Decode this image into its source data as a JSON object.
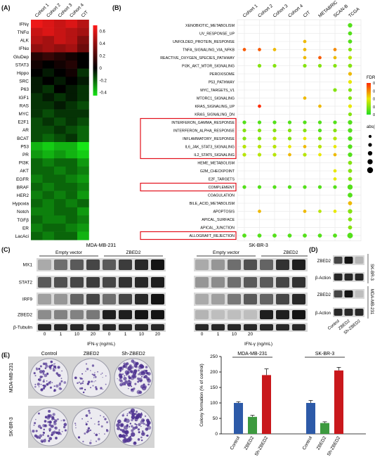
{
  "panels": {
    "A": {
      "letter": "(A)",
      "columns": [
        "Cohort 1",
        "Cohort 2",
        "Cohort 3",
        "Cohort 4",
        "CIT"
      ],
      "rows": [
        "IFNγ",
        "TNFα",
        "ALK",
        "IFNα",
        "GluDep",
        "STAT3",
        "Hippo",
        "SRC",
        "P63",
        "IGF1",
        "RAS",
        "MYC",
        "E2F1",
        "AR",
        "BCAT",
        "P53",
        "PR",
        "PI3K",
        "AKT",
        "EGFR",
        "BRAF",
        "HER2",
        "Hypoxia",
        "Notch",
        "TGFβ",
        "ER",
        "LacAci"
      ],
      "values": [
        [
          0.65,
          0.6,
          0.55,
          0.6,
          0.5
        ],
        [
          0.55,
          0.6,
          0.55,
          0.5,
          0.45
        ],
        [
          0.5,
          0.45,
          0.55,
          0.5,
          0.35
        ],
        [
          0.4,
          0.45,
          0.4,
          0.45,
          0.3
        ],
        [
          0.1,
          0.15,
          0.1,
          0.05,
          0.0
        ],
        [
          0.05,
          0.0,
          0.05,
          0.1,
          0.0
        ],
        [
          0.0,
          -0.05,
          0.0,
          0.05,
          -0.1
        ],
        [
          -0.05,
          0.0,
          -0.05,
          0.0,
          -0.05
        ],
        [
          -0.05,
          -0.1,
          0.0,
          -0.05,
          -0.1
        ],
        [
          -0.1,
          -0.05,
          -0.1,
          -0.05,
          -0.1
        ],
        [
          -0.1,
          -0.1,
          -0.05,
          -0.1,
          -0.15
        ],
        [
          -0.1,
          -0.15,
          -0.1,
          -0.1,
          -0.1
        ],
        [
          -0.15,
          -0.1,
          -0.15,
          -0.1,
          -0.15
        ],
        [
          -0.15,
          -0.15,
          -0.1,
          -0.15,
          -0.2
        ],
        [
          -0.15,
          -0.2,
          -0.15,
          -0.1,
          -0.2
        ],
        [
          -0.35,
          -0.4,
          -0.35,
          -0.35,
          -0.45
        ],
        [
          -0.3,
          -0.35,
          -0.3,
          -0.35,
          -0.4
        ],
        [
          -0.2,
          -0.25,
          -0.2,
          -0.2,
          -0.3
        ],
        [
          -0.2,
          -0.2,
          -0.25,
          -0.2,
          -0.25
        ],
        [
          -0.25,
          -0.2,
          -0.2,
          -0.25,
          -0.3
        ],
        [
          -0.2,
          -0.25,
          -0.2,
          -0.2,
          -0.25
        ],
        [
          -0.25,
          -0.2,
          -0.25,
          -0.2,
          -0.3
        ],
        [
          -0.2,
          -0.25,
          -0.2,
          -0.25,
          -0.2
        ],
        [
          -0.25,
          -0.25,
          -0.2,
          -0.2,
          -0.3
        ],
        [
          -0.2,
          -0.25,
          -0.25,
          -0.2,
          -0.25
        ],
        [
          -0.25,
          -0.2,
          -0.2,
          -0.25,
          -0.3
        ],
        [
          -0.2,
          -0.25,
          -0.2,
          -0.2,
          -0.35
        ]
      ],
      "colorbar_ticks": [
        "0.6",
        "0.4",
        "0.2",
        "0",
        "-0.2",
        "-0.4"
      ],
      "colorbar_tick_values": [
        0.6,
        0.4,
        0.2,
        0,
        -0.2,
        -0.4
      ],
      "range": [
        -0.45,
        0.7
      ],
      "colors": {
        "high": "#ff1a1a",
        "mid": "#000000",
        "low": "#17e617"
      }
    },
    "B": {
      "letter": "(B)",
      "columns": [
        "Cohort 1",
        "Cohort 2",
        "Cohort 3",
        "Cohort 4",
        "CIT",
        "METABRIC",
        "SCAN-B",
        "TCGA"
      ],
      "pathways": [
        "XENOBIOTIC_METABOLISM",
        "UV_RESPONSE_UP",
        "UNFOLDED_PROTEIN_RESPONSE",
        "TNFA_SIGNALING_VIA_NFKB",
        "REACTIVE_OXYGEN_SPECIES_PATHWAY",
        "PI3K_AKT_MTOR_SIGNALING",
        "PEROXISOME",
        "P53_PATHWAY",
        "MYC_TARGETS_V1",
        "MTORC1_SIGNALING",
        "KRAS_SIGNALING_UP",
        "KRAS_SIGNALING_DN",
        "INTERFERON_GAMMA_RESPONSE",
        "INTERFERON_ALPHA_RESPONSE",
        "INFLAMMATORY_RESPONSE",
        "IL6_JAK_STAT3_SIGNALING",
        "IL2_STAT5_SIGNALING",
        "HEME_METABOLISM",
        "G2M_CHECKPOINT",
        "E2F_TARGETS",
        "COMPLEMENT",
        "COAGULATION",
        "BILE_ACID_METABOLISM",
        "APOPTOSIS",
        "APICAL_SURFACE",
        "APICAL_JUNCTION",
        "ALLOGRAFT_REJECTION"
      ],
      "boxed_groups": [
        [
          12,
          16
        ],
        [
          20,
          20
        ],
        [
          26,
          26
        ]
      ],
      "dots": [
        [
          0,
          7,
          0.01,
          0.6
        ],
        [
          1,
          7,
          0.01,
          0.5
        ],
        [
          2,
          4,
          0.05,
          0.3
        ],
        [
          2,
          7,
          0.01,
          0.5
        ],
        [
          3,
          0,
          0.07,
          0.3
        ],
        [
          3,
          1,
          0.07,
          0.3
        ],
        [
          3,
          2,
          0.05,
          0.3
        ],
        [
          3,
          4,
          0.05,
          0.3
        ],
        [
          3,
          6,
          0.06,
          0.3
        ],
        [
          3,
          7,
          0.02,
          0.4
        ],
        [
          4,
          4,
          0.05,
          0.3
        ],
        [
          4,
          5,
          0.07,
          0.3
        ],
        [
          4,
          6,
          0.05,
          0.3
        ],
        [
          4,
          7,
          0.03,
          0.4
        ],
        [
          5,
          1,
          0.02,
          0.4
        ],
        [
          5,
          2,
          0.02,
          0.4
        ],
        [
          5,
          4,
          0.02,
          0.4
        ],
        [
          5,
          5,
          0.02,
          0.4
        ],
        [
          5,
          6,
          0.02,
          0.4
        ],
        [
          5,
          7,
          0.02,
          0.5
        ],
        [
          6,
          7,
          0.05,
          0.4
        ],
        [
          7,
          7,
          0.04,
          0.4
        ],
        [
          8,
          6,
          0.02,
          0.4
        ],
        [
          8,
          7,
          0.02,
          0.4
        ],
        [
          9,
          4,
          0.05,
          0.3
        ],
        [
          9,
          7,
          0.02,
          0.4
        ],
        [
          10,
          1,
          0.08,
          0.3
        ],
        [
          10,
          5,
          0.05,
          0.3
        ],
        [
          10,
          7,
          0.04,
          0.4
        ],
        [
          11,
          7,
          0.02,
          0.4
        ],
        [
          12,
          0,
          0.01,
          0.4
        ],
        [
          12,
          1,
          0.01,
          0.4
        ],
        [
          12,
          2,
          0.01,
          0.4
        ],
        [
          12,
          3,
          0.01,
          0.4
        ],
        [
          12,
          4,
          0.01,
          0.4
        ],
        [
          12,
          5,
          0.01,
          0.4
        ],
        [
          12,
          6,
          0.01,
          0.4
        ],
        [
          12,
          7,
          0.01,
          0.6
        ],
        [
          13,
          0,
          0.02,
          0.4
        ],
        [
          13,
          1,
          0.02,
          0.4
        ],
        [
          13,
          2,
          0.02,
          0.4
        ],
        [
          13,
          3,
          0.02,
          0.4
        ],
        [
          13,
          4,
          0.02,
          0.4
        ],
        [
          13,
          5,
          0.01,
          0.4
        ],
        [
          13,
          6,
          0.02,
          0.4
        ],
        [
          13,
          7,
          0.01,
          0.6
        ],
        [
          14,
          0,
          0.02,
          0.4
        ],
        [
          14,
          1,
          0.02,
          0.4
        ],
        [
          14,
          2,
          0.03,
          0.4
        ],
        [
          14,
          3,
          0.02,
          0.4
        ],
        [
          14,
          4,
          0.04,
          0.3
        ],
        [
          14,
          5,
          0.02,
          0.4
        ],
        [
          14,
          6,
          0.03,
          0.4
        ],
        [
          14,
          7,
          0.01,
          0.6
        ],
        [
          15,
          0,
          0.03,
          0.4
        ],
        [
          15,
          1,
          0.03,
          0.4
        ],
        [
          15,
          2,
          0.03,
          0.4
        ],
        [
          15,
          3,
          0.04,
          0.3
        ],
        [
          15,
          4,
          0.05,
          0.3
        ],
        [
          15,
          5,
          0.03,
          0.4
        ],
        [
          15,
          6,
          0.04,
          0.3
        ],
        [
          15,
          7,
          0.01,
          0.6
        ],
        [
          16,
          0,
          0.03,
          0.4
        ],
        [
          16,
          1,
          0.03,
          0.4
        ],
        [
          16,
          2,
          0.03,
          0.4
        ],
        [
          16,
          3,
          0.05,
          0.3
        ],
        [
          16,
          4,
          0.03,
          0.4
        ],
        [
          16,
          5,
          0.04,
          0.3
        ],
        [
          16,
          6,
          0.05,
          0.3
        ],
        [
          16,
          7,
          0.01,
          0.6
        ],
        [
          17,
          7,
          0.02,
          0.5
        ],
        [
          18,
          6,
          0.04,
          0.3
        ],
        [
          18,
          7,
          0.02,
          0.5
        ],
        [
          19,
          6,
          0.04,
          0.3
        ],
        [
          19,
          7,
          0.02,
          0.5
        ],
        [
          20,
          0,
          0.01,
          0.4
        ],
        [
          20,
          1,
          0.01,
          0.4
        ],
        [
          20,
          2,
          0.01,
          0.4
        ],
        [
          20,
          3,
          0.01,
          0.4
        ],
        [
          20,
          4,
          0.01,
          0.4
        ],
        [
          20,
          5,
          0.01,
          0.4
        ],
        [
          20,
          6,
          0.01,
          0.4
        ],
        [
          20,
          7,
          0.01,
          0.8
        ],
        [
          21,
          7,
          0.01,
          0.7
        ],
        [
          22,
          7,
          0.05,
          0.5
        ],
        [
          23,
          1,
          0.05,
          0.3
        ],
        [
          23,
          4,
          0.05,
          0.3
        ],
        [
          23,
          5,
          0.03,
          0.3
        ],
        [
          23,
          6,
          0.04,
          0.3
        ],
        [
          23,
          7,
          0.02,
          0.6
        ],
        [
          24,
          7,
          0.02,
          0.5
        ],
        [
          25,
          7,
          0.02,
          0.5
        ],
        [
          26,
          0,
          0.01,
          0.5
        ],
        [
          26,
          1,
          0.01,
          0.5
        ],
        [
          26,
          2,
          0.01,
          0.5
        ],
        [
          26,
          3,
          0.01,
          0.5
        ],
        [
          26,
          4,
          0.01,
          0.5
        ],
        [
          26,
          5,
          0.01,
          0.5
        ],
        [
          26,
          6,
          0.01,
          0.5
        ],
        [
          26,
          7,
          0.01,
          0.9
        ]
      ],
      "fdr_title": "FDR.q.val",
      "fdr_ticks": [
        "0.08",
        "0.06",
        "0.04",
        "0.02",
        "0.00"
      ],
      "fdr_tick_values": [
        0.08,
        0.06,
        0.04,
        0.02,
        0.0
      ],
      "size_title": "abs(NES) - 1.35",
      "size_ticks": [
        "0.2",
        "0.4",
        "0.6",
        "0.8",
        "1.0"
      ],
      "size_tick_values": [
        0.2,
        0.4,
        0.6,
        0.8,
        1.0
      ],
      "colors": {
        "low": "#22dd22",
        "mid": "#e8e800",
        "high": "#ff2a00",
        "box": "#e3101b",
        "grid": "#ebebeb"
      }
    },
    "C": {
      "letter": "(C)",
      "groups": [
        {
          "cell": "MDA-MB-231",
          "conditions": [
            "Empty vector",
            "ZBED2"
          ]
        },
        {
          "cell": "SK-BR-3",
          "conditions": [
            "Empty vector",
            "ZBED2"
          ]
        }
      ],
      "proteins": [
        "MX1",
        "STAT2",
        "IRF9",
        "ZBED2",
        "β-Tubulin"
      ],
      "doses": [
        "0",
        "1",
        "10",
        "20",
        "0",
        "1",
        "10",
        "20"
      ],
      "xlabel": "IFN-γ (ng/mL)",
      "band_intensity": [
        [
          [
            0.2,
            0.5,
            0.6,
            0.7,
            0.6,
            0.75,
            0.85,
            0.95
          ],
          [
            0.2,
            0.3,
            0.5,
            0.65,
            0.55,
            0.8,
            0.9,
            1.0
          ]
        ],
        [
          [
            0.6,
            0.65,
            0.7,
            0.75,
            0.7,
            0.8,
            0.85,
            0.9
          ],
          [
            0.3,
            0.35,
            0.5,
            0.6,
            0.6,
            0.7,
            0.8,
            0.85
          ]
        ],
        [
          [
            0.25,
            0.3,
            0.55,
            0.7,
            0.5,
            0.7,
            0.85,
            0.95
          ],
          [
            0.2,
            0.25,
            0.45,
            0.6,
            0.55,
            0.7,
            0.85,
            0.95
          ]
        ],
        [
          [
            0.35,
            0.4,
            0.4,
            0.45,
            0.9,
            0.9,
            0.95,
            0.95
          ],
          [
            0.15,
            0.1,
            0.1,
            0.1,
            0.9,
            0.9,
            0.95,
            0.95
          ]
        ],
        [
          [
            0.85,
            0.85,
            0.85,
            0.85,
            0.85,
            0.85,
            0.85,
            0.85
          ],
          [
            0.85,
            0.85,
            0.85,
            0.85,
            0.85,
            0.85,
            0.85,
            0.85
          ]
        ]
      ]
    },
    "D": {
      "letter": "(D)",
      "rows": [
        "ZBED2",
        "β-Action",
        "ZBED2",
        "β-Action"
      ],
      "cells": [
        "SK-BR-3",
        "MDA-MB-231"
      ],
      "lanes": [
        "Control",
        "ZBED2",
        "Sh-ZBED2"
      ],
      "band_intensity": [
        [
          0.7,
          0.95,
          0.15
        ],
        [
          0.85,
          0.85,
          0.85
        ],
        [
          0.7,
          0.95,
          0.1
        ],
        [
          0.85,
          0.85,
          0.85
        ]
      ]
    },
    "E": {
      "letter": "(E)",
      "columns": [
        "Control",
        "ZBED2",
        "Sh-ZBED2"
      ],
      "rows": [
        "MDA-MB-231",
        "SK-BR-3"
      ],
      "colony_density": [
        [
          0.55,
          0.25,
          0.9
        ],
        [
          0.55,
          0.2,
          0.95
        ]
      ],
      "chart_data": {
        "type": "bar",
        "ylabel": "Colony formation (% of control)",
        "ylim": [
          0,
          250
        ],
        "yticks": [
          0,
          50,
          100,
          150,
          200,
          250
        ],
        "groups": [
          {
            "name": "MDA-MB-231",
            "categories": [
              "Control",
              "ZBED2",
              "Sh-ZBED2"
            ],
            "values": [
              100,
              55,
              190
            ],
            "errors": [
              4,
              5,
              20
            ]
          },
          {
            "name": "SK-BR-3",
            "categories": [
              "Control",
              "ZBED2",
              "Sh-ZBED2"
            ],
            "values": [
              100,
              35,
              205
            ],
            "errors": [
              8,
              4,
              10
            ]
          }
        ],
        "colors": [
          "#2d5aa8",
          "#3d9a3f",
          "#c9181c"
        ]
      }
    }
  }
}
